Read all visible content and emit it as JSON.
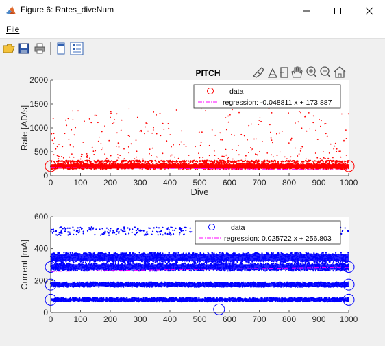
{
  "window": {
    "title": "Figure 6: Rates_diveNum",
    "minimize_label": "—",
    "maximize_label": "☐",
    "close_label": "✕"
  },
  "menu": {
    "file": "File"
  },
  "toolbar": {
    "buttons": [
      "open-file-icon",
      "save-icon",
      "print-icon",
      "dock-figure-icon",
      "property-inspector-icon"
    ]
  },
  "axes_toolbar": [
    "brush-icon",
    "data-tips-icon",
    "export-icon",
    "pan-icon",
    "zoom-in-icon",
    "zoom-out-icon",
    "home-icon"
  ],
  "colors": {
    "red": "#ff0000",
    "blue": "#0000ff",
    "magenta": "#ff00ff"
  },
  "chart_data": [
    {
      "type": "scatter",
      "title": "PITCH",
      "xlabel": "Dive",
      "ylabel": "Rate [AD/s]",
      "xlim": [
        0,
        1000
      ],
      "ylim": [
        0,
        2000
      ],
      "xticks": [
        "0",
        "100",
        "200",
        "300",
        "400",
        "500",
        "600",
        "700",
        "800",
        "900",
        "1000"
      ],
      "yticks": [
        "0",
        "500",
        "1000",
        "1500",
        "2000"
      ],
      "legend_position": "top-right",
      "series": [
        {
          "name": "data",
          "color": "#ff0000",
          "marker": "circle",
          "bands": [
            {
              "y_center": 200,
              "y_spread": 60,
              "density": 1.0
            },
            {
              "y_center": 300,
              "y_spread": 20,
              "density": 0.3
            }
          ],
          "scatter_range": [
            350,
            1400
          ],
          "large_markers": [
            {
              "x": 0,
              "y": 200
            },
            {
              "x": 1000,
              "y": 200
            }
          ]
        },
        {
          "name": "regression: -0.048811 x + 173.887",
          "color": "#ff00ff",
          "line": "dashdot",
          "slope": -0.048811,
          "intercept": 173.887
        }
      ]
    },
    {
      "type": "scatter",
      "title": "",
      "xlabel": "",
      "ylabel": "Current [mA]",
      "xlim": [
        0,
        1000
      ],
      "ylim": [
        0,
        600
      ],
      "xticks": [
        "0",
        "100",
        "200",
        "300",
        "400",
        "500",
        "600",
        "700",
        "800",
        "900",
        "1000"
      ],
      "yticks": [
        "0",
        "200",
        "400",
        "600"
      ],
      "legend_position": "top-right",
      "series": [
        {
          "name": "data",
          "color": "#0000ff",
          "marker": "circle",
          "bands": [
            {
              "y_center": 510,
              "y_spread": 25,
              "density": 0.25
            },
            {
              "y_center": 345,
              "y_spread": 30,
              "density": 1.0
            },
            {
              "y_center": 285,
              "y_spread": 25,
              "density": 1.0
            },
            {
              "y_center": 175,
              "y_spread": 15,
              "density": 1.0
            },
            {
              "y_center": 80,
              "y_spread": 12,
              "density": 1.0
            }
          ],
          "large_markers": [
            {
              "x": 0,
              "y": 285
            },
            {
              "x": 1000,
              "y": 285
            },
            {
              "x": 1000,
              "y": 175
            },
            {
              "x": 0,
              "y": 175
            },
            {
              "x": 0,
              "y": 80
            },
            {
              "x": 1000,
              "y": 80
            },
            {
              "x": 565,
              "y": 20
            }
          ]
        },
        {
          "name": "regression: 0.025722 x + 256.803",
          "color": "#ff00ff",
          "line": "dashdot",
          "slope": 0.025722,
          "intercept": 256.803
        }
      ]
    }
  ]
}
